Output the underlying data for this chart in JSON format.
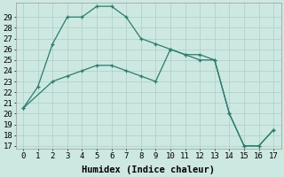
{
  "xlabel": "Humidex (Indice chaleur)",
  "line1_x": [
    0,
    1,
    2,
    3,
    4,
    5,
    6,
    7,
    8,
    9,
    10,
    11,
    12,
    13,
    14,
    15,
    16,
    17
  ],
  "line1_y": [
    20.5,
    22.5,
    26.5,
    29,
    29,
    30,
    30,
    29,
    27,
    26.5,
    26,
    25.5,
    25.5,
    25,
    20,
    17,
    17,
    18.5
  ],
  "line2_x": [
    0,
    2,
    3,
    4,
    5,
    6,
    7,
    8,
    9,
    10,
    11,
    12,
    13,
    14,
    15,
    16,
    17
  ],
  "line2_y": [
    20.5,
    23,
    23.5,
    24,
    24.5,
    24.5,
    24,
    23.5,
    23,
    26,
    25.5,
    25,
    25,
    20,
    17,
    17,
    18.5
  ],
  "line_color": "#2a7d6e",
  "bg_color": "#cce8e0",
  "grid_color": "#aacfc7",
  "yticks": [
    17,
    18,
    19,
    20,
    21,
    22,
    23,
    24,
    25,
    26,
    27,
    28,
    29
  ],
  "xticks": [
    0,
    1,
    2,
    3,
    4,
    5,
    6,
    7,
    8,
    9,
    10,
    11,
    12,
    13,
    14,
    15,
    16,
    17
  ],
  "ylim": [
    16.7,
    30.3
  ],
  "xlim": [
    -0.5,
    17.5
  ],
  "tick_fontsize": 6.5,
  "xlabel_fontsize": 7.5
}
